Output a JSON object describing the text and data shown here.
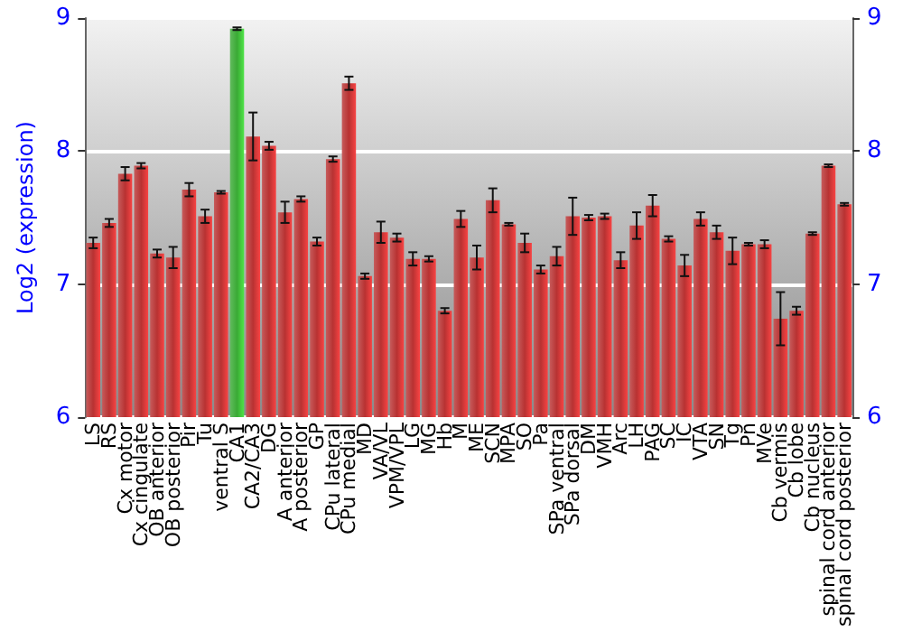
{
  "chart_data": {
    "type": "bar",
    "ylabel": "Log2 (expression)",
    "categories": [
      "LS",
      "RS",
      "Cx motor",
      "Cx cingulate",
      "OB anterior",
      "OB posterior",
      "Pir",
      "Tu",
      "ventral S",
      "CA1",
      "CA2/CA3",
      "DG",
      "A anterior",
      "A posterior",
      "GP",
      "CPu lateral",
      "CPu medial",
      "MD",
      "VA/VL",
      "VPM/VPL",
      "LG",
      "MG",
      "Hb",
      "M",
      "ME",
      "SCN",
      "MPA",
      "SO",
      "Pa",
      "SPa ventral",
      "SPa dorsal",
      "DM",
      "VMH",
      "Arc",
      "LH",
      "PAG",
      "SC",
      "IC",
      "VTA",
      "SN",
      "Tg",
      "Pn",
      "MVe",
      "Cb vermis",
      "Cb lobe",
      "Cb nucleus",
      "spinal cord anterior",
      "spinal cord posterior"
    ],
    "values": [
      7.31,
      7.46,
      7.83,
      7.89,
      7.23,
      7.2,
      7.71,
      7.51,
      7.69,
      8.92,
      8.11,
      8.04,
      7.54,
      7.64,
      7.32,
      7.94,
      8.51,
      7.06,
      7.39,
      7.35,
      7.19,
      7.19,
      6.8,
      7.49,
      7.2,
      7.63,
      7.45,
      7.31,
      7.11,
      7.21,
      7.51,
      7.5,
      7.51,
      7.18,
      7.44,
      7.59,
      7.34,
      7.14,
      7.49,
      7.39,
      7.25,
      7.3,
      7.3,
      6.74,
      6.8,
      7.38,
      7.89,
      7.6
    ],
    "errors": [
      0.04,
      0.03,
      0.05,
      0.02,
      0.03,
      0.08,
      0.05,
      0.05,
      0.01,
      0.01,
      0.18,
      0.03,
      0.08,
      0.02,
      0.03,
      0.02,
      0.05,
      0.02,
      0.08,
      0.03,
      0.05,
      0.02,
      0.02,
      0.06,
      0.09,
      0.09,
      0.01,
      0.07,
      0.03,
      0.07,
      0.14,
      0.02,
      0.02,
      0.06,
      0.1,
      0.08,
      0.02,
      0.08,
      0.05,
      0.05,
      0.1,
      0.01,
      0.03,
      0.2,
      0.03,
      0.01,
      0.01,
      0.01
    ],
    "colors": [
      "#b83232",
      "#b83232",
      "#b83232",
      "#b83232",
      "#b83232",
      "#b83232",
      "#b83232",
      "#b83232",
      "#b83232",
      "#3aaa35",
      "#b83232",
      "#b83232",
      "#b83232",
      "#b83232",
      "#b83232",
      "#b83232",
      "#b83232",
      "#b83232",
      "#b83232",
      "#b83232",
      "#b83232",
      "#b83232",
      "#b83232",
      "#b83232",
      "#b83232",
      "#b83232",
      "#b83232",
      "#b83232",
      "#b83232",
      "#b83232",
      "#b83232",
      "#b83232",
      "#b83232",
      "#b83232",
      "#b83232",
      "#b83232",
      "#b83232",
      "#b83232",
      "#b83232",
      "#b83232",
      "#b83232",
      "#b83232",
      "#b83232",
      "#b83232",
      "#b83232",
      "#b83232",
      "#b83232",
      "#b83232"
    ],
    "ylim": [
      6,
      9
    ],
    "yticks": [
      6,
      7,
      8,
      9
    ],
    "y2lim": [
      6,
      9
    ],
    "y2ticks": [
      6,
      7,
      8,
      9
    ],
    "grid": "y"
  }
}
